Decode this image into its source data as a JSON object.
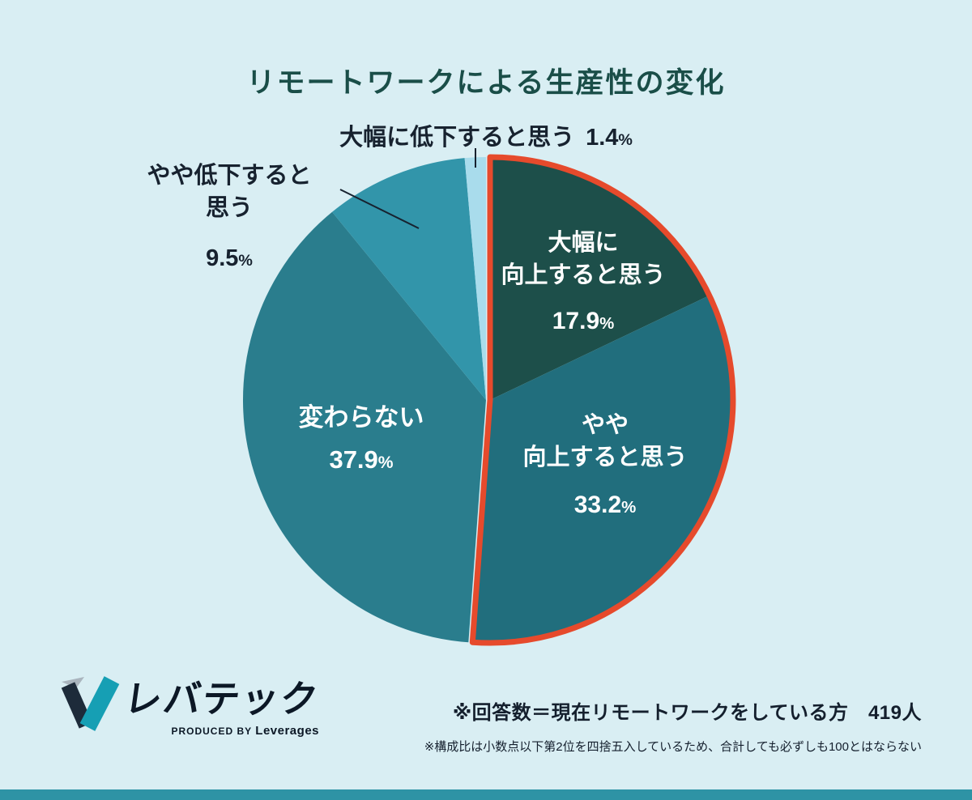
{
  "page": {
    "title": "リモートワークによる生産性の変化",
    "background_color": "#d9eef3",
    "title_color": "#1a4e48",
    "accent_bar_color": "#2e93a5",
    "text_color": "#17222f"
  },
  "chart_data": {
    "type": "pie",
    "title": "リモートワークによる生産性の変化",
    "unit": "%",
    "start_angle_deg": 0,
    "direction": "clockwise",
    "legend": "none",
    "slices": [
      {
        "id": "improve-large",
        "label": "大幅に向上すると思う",
        "label_lines": [
          "大幅に",
          "向上すると思う"
        ],
        "value": 17.9,
        "pct_display": "17.9",
        "color": "#1d4f4a",
        "text_color": "#ffffff"
      },
      {
        "id": "improve-slight",
        "label": "やや向上すると思う",
        "label_lines": [
          "やや",
          "向上すると思う"
        ],
        "value": 33.2,
        "pct_display": "33.2",
        "color": "#216e7d",
        "text_color": "#ffffff"
      },
      {
        "id": "no-change",
        "label": "変わらない",
        "label_lines": [
          "変わらない"
        ],
        "value": 37.9,
        "pct_display": "37.9",
        "color": "#2a7d8d",
        "text_color": "#ffffff"
      },
      {
        "id": "decline-slight",
        "label": "やや低下すると思う",
        "label_lines": [
          "やや低下すると",
          "思う"
        ],
        "value": 9.5,
        "pct_display": "9.5",
        "color": "#3295aa",
        "text_color": "#17222f"
      },
      {
        "id": "decline-large",
        "label": "大幅に低下すると思う",
        "label_lines": [
          "大幅に低下すると思う"
        ],
        "value": 1.4,
        "pct_display": "1.4",
        "color": "#a9dcec",
        "text_color": "#17222f"
      }
    ],
    "highlight": {
      "slice_indexes": [
        0,
        1
      ],
      "color": "#e64a2c"
    }
  },
  "footer": {
    "logo": {
      "text": "レバテック",
      "produced_by": "PRODUCED BY",
      "company": "Leverages"
    },
    "note_respondents": "※回答数＝現在リモートワークをしている方　419人",
    "note_rounding": "※構成比は小数点以下第2位を四捨五入しているため、合計しても必ずしも100とはならない"
  }
}
